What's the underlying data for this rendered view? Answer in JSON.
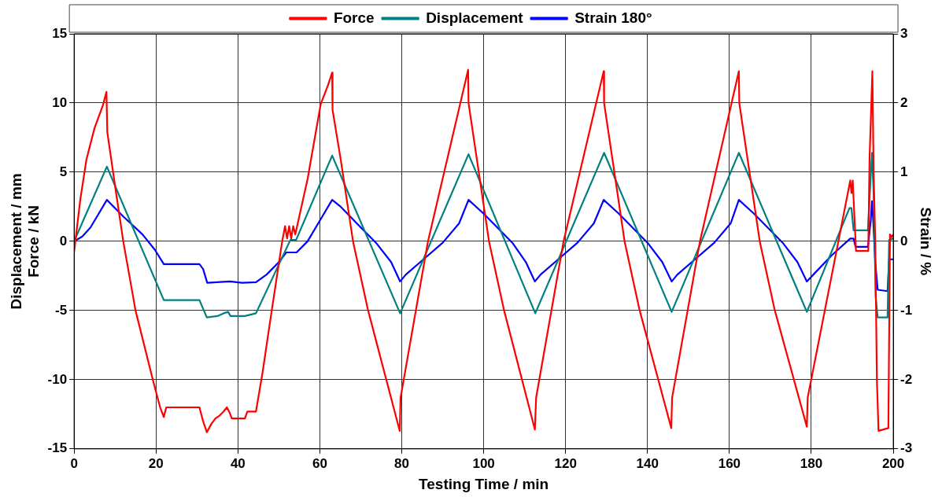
{
  "chart_data": {
    "type": "line",
    "xlabel": "Testing Time / min",
    "ylabel": "Displacement / mm\nForce / kN",
    "y2label": "Strain / %",
    "xlim": [
      0,
      200
    ],
    "xticks": [
      0,
      20,
      40,
      60,
      80,
      100,
      120,
      140,
      160,
      180,
      200
    ],
    "ylim": [
      -15,
      15
    ],
    "yticks": [
      -15,
      -10,
      -5,
      0,
      5,
      10,
      15
    ],
    "y2lim": [
      -3,
      3
    ],
    "y2ticks": [
      -3,
      -2,
      -1,
      0,
      1,
      2,
      3
    ],
    "grid": true,
    "legend": "top",
    "marker": "none",
    "line_style": "solid",
    "series": [
      {
        "name": "Force",
        "color": "#ff0000",
        "x": [
          0,
          0.3,
          1.5,
          3,
          5,
          7,
          7.9,
          8.1,
          10,
          12,
          15,
          19.3,
          21,
          21.9,
          22.5,
          30.6,
          31.5,
          32.4,
          33.5,
          34.5,
          35.5,
          36.5,
          37.3,
          38,
          38.5,
          41.7,
          42.3,
          44.4,
          46,
          48,
          50.8,
          51.5,
          52,
          52.5,
          53,
          53.5,
          54,
          57,
          60.2,
          62,
          63,
          63.1,
          65.1,
          68.1,
          71.7,
          79.5,
          79.7,
          86.4,
          96.2,
          96.3,
          98.3,
          101.3,
          104.9,
          112.5,
          112.8,
          119.5,
          129.3,
          129.4,
          131.4,
          134.4,
          138,
          145.8,
          146,
          152.8,
          162.3,
          162.4,
          164.4,
          167.4,
          171,
          178.9,
          179.1,
          186.6,
          189.5,
          189.8,
          190.1,
          190.9,
          193.9,
          194.2,
          194.9,
          195.2,
          195.6,
          196,
          196.4,
          198.8,
          198.9,
          199.2,
          199.6,
          200
        ],
        "values": [
          -0.8,
          0,
          3,
          5.9,
          8.2,
          9.8,
          10.8,
          7.9,
          4,
          0,
          -5,
          -10.1,
          -12,
          -12.7,
          -12,
          -12,
          -13,
          -13.8,
          -13.2,
          -12.8,
          -12.6,
          -12.3,
          -12,
          -12.4,
          -12.8,
          -12.8,
          -12.3,
          -12.3,
          -9.5,
          -5.5,
          0,
          1.1,
          0.2,
          1.1,
          0.2,
          1.1,
          0.5,
          4.5,
          9.9,
          11.3,
          12.2,
          9.5,
          5.9,
          0,
          -4.9,
          -13.7,
          -11.3,
          0,
          12.4,
          10,
          6,
          0,
          -4.9,
          -13.6,
          -11.3,
          0,
          12.3,
          10,
          6,
          0,
          -4.9,
          -13.5,
          -11.3,
          0,
          12.3,
          10,
          6,
          0,
          -4.9,
          -13.4,
          -11.3,
          0,
          4.4,
          3.5,
          4.4,
          -0.7,
          -0.7,
          5.9,
          12.3,
          5,
          0,
          -10,
          -13.7,
          -13.5,
          -10,
          0.5,
          0.3,
          0.5
        ]
      },
      {
        "name": "Displacement",
        "color": "#008080",
        "x": [
          0,
          8,
          21.9,
          30.6,
          32.4,
          35,
          36.5,
          37.6,
          38.2,
          41.7,
          44.4,
          52.8,
          54.2,
          63,
          79.6,
          96.3,
          112.6,
          129.4,
          145.9,
          162.3,
          178.9,
          189.3,
          189.8,
          190.3,
          193.8,
          194.8,
          195.2,
          195.7,
          196.2,
          198.6,
          199,
          200
        ],
        "values": [
          0,
          5.4,
          -4.25,
          -4.25,
          -5.5,
          -5.4,
          -5.2,
          -5.1,
          -5.4,
          -5.4,
          -5.2,
          0.1,
          0.1,
          6.2,
          -5.2,
          6.3,
          -5.2,
          6.4,
          -5.1,
          6.4,
          -5.1,
          2.4,
          2.4,
          0.8,
          0.8,
          6.4,
          3.5,
          -4,
          -5.5,
          -5.5,
          0.1,
          0.2
        ]
      },
      {
        "name": "Strain 180°",
        "color": "#0000ff",
        "axis": "y2",
        "x": [
          0,
          2,
          4,
          6,
          8,
          12,
          16.7,
          19.7,
          21.9,
          30.6,
          31.5,
          32.5,
          38,
          41,
          44.4,
          47,
          50,
          51.8,
          54.3,
          57,
          60,
          63,
          65.1,
          70,
          73.7,
          77.4,
          79.6,
          81,
          85.3,
          90,
          94,
          96.3,
          100,
          107,
          110.3,
          112.5,
          113.9,
          118.2,
          122.9,
          126.9,
          129.3,
          133,
          140,
          143.6,
          145.9,
          147.3,
          151.6,
          156.3,
          160.3,
          162.3,
          166,
          173,
          176.6,
          178.9,
          180.5,
          185,
          189.5,
          190.3,
          190.8,
          193.8,
          194.5,
          194.8,
          195.1,
          195.6,
          196.2,
          198.6,
          199,
          200
        ],
        "values": [
          0,
          0.07,
          0.2,
          0.4,
          0.6,
          0.36,
          0.1,
          -0.12,
          -0.33,
          -0.33,
          -0.4,
          -0.6,
          -0.58,
          -0.6,
          -0.59,
          -0.48,
          -0.3,
          -0.16,
          -0.16,
          0,
          0.3,
          0.6,
          0.5,
          0.2,
          -0.02,
          -0.3,
          -0.58,
          -0.48,
          -0.26,
          -0.02,
          0.26,
          0.6,
          0.4,
          -0.02,
          -0.3,
          -0.58,
          -0.48,
          -0.26,
          -0.02,
          0.26,
          0.6,
          0.4,
          -0.02,
          -0.3,
          -0.58,
          -0.48,
          -0.26,
          -0.02,
          0.26,
          0.6,
          0.4,
          -0.02,
          -0.3,
          -0.58,
          -0.48,
          -0.2,
          0.04,
          0.04,
          -0.08,
          -0.08,
          0.3,
          0.58,
          0.3,
          -0.3,
          -0.7,
          -0.72,
          -0.26,
          -0.26
        ]
      }
    ]
  }
}
